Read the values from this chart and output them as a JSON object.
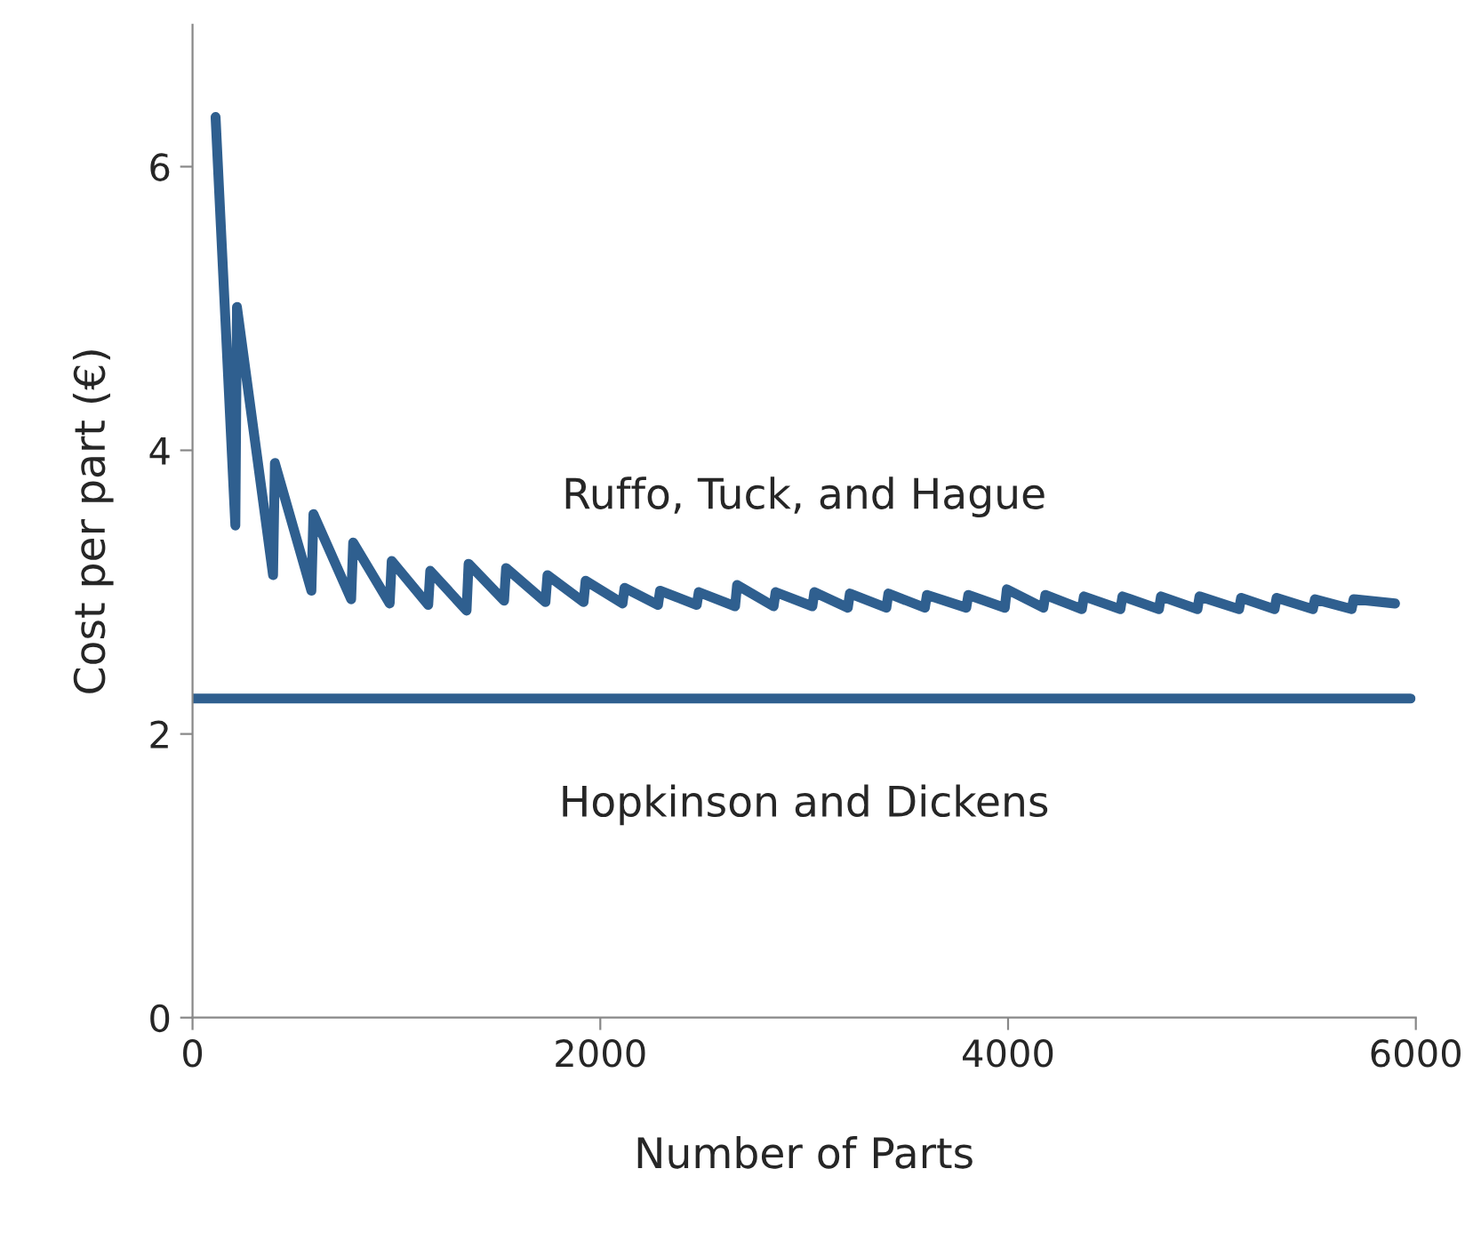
{
  "chart_data": {
    "type": "line",
    "xlabel": "Number of Parts",
    "ylabel": "Cost per part (€)",
    "xlim": [
      0,
      6000
    ],
    "ylim": [
      0,
      7
    ],
    "xticks": [
      0,
      2000,
      4000,
      6000
    ],
    "yticks": [
      0,
      2,
      4,
      6
    ],
    "grid": false,
    "legend": false,
    "line_style": "solid",
    "marker": "none",
    "series": [
      {
        "name": "Ruffo, Tuck, and Hague",
        "color": "#2f5f8f",
        "x": [
          113,
          210,
          218,
          395,
          404,
          583,
          593,
          778,
          788,
          967,
          977,
          1156,
          1166,
          1344,
          1354,
          1528,
          1538,
          1731,
          1741,
          1918,
          1928,
          2109,
          2119,
          2283,
          2293,
          2473,
          2483,
          2661,
          2671,
          2850,
          2860,
          3040,
          3050,
          3214,
          3224,
          3403,
          3413,
          3592,
          3602,
          3795,
          3805,
          3984,
          3994,
          4173,
          4183,
          4362,
          4372,
          4551,
          4561,
          4740,
          4750,
          4929,
          4939,
          5133,
          5143,
          5307,
          5317,
          5495,
          5505,
          5685,
          5695,
          5898
        ],
        "values": [
          6.35,
          3.47,
          5.01,
          3.12,
          3.91,
          3.01,
          3.55,
          2.95,
          3.35,
          2.92,
          3.22,
          2.91,
          3.15,
          2.87,
          3.2,
          2.94,
          3.17,
          2.93,
          3.12,
          2.93,
          3.08,
          2.92,
          3.03,
          2.91,
          3.01,
          2.91,
          3.0,
          2.9,
          3.05,
          2.9,
          3.0,
          2.9,
          3.0,
          2.89,
          2.99,
          2.89,
          2.99,
          2.89,
          2.98,
          2.89,
          2.98,
          2.89,
          3.02,
          2.89,
          2.98,
          2.88,
          2.97,
          2.88,
          2.97,
          2.88,
          2.97,
          2.88,
          2.97,
          2.88,
          2.96,
          2.88,
          2.96,
          2.88,
          2.95,
          2.88,
          2.95,
          2.92
        ]
      },
      {
        "name": "Hopkinson and Dickens",
        "color": "#2f5f8f",
        "x": [
          0,
          5974
        ],
        "values": [
          2.25,
          2.25
        ]
      }
    ]
  }
}
